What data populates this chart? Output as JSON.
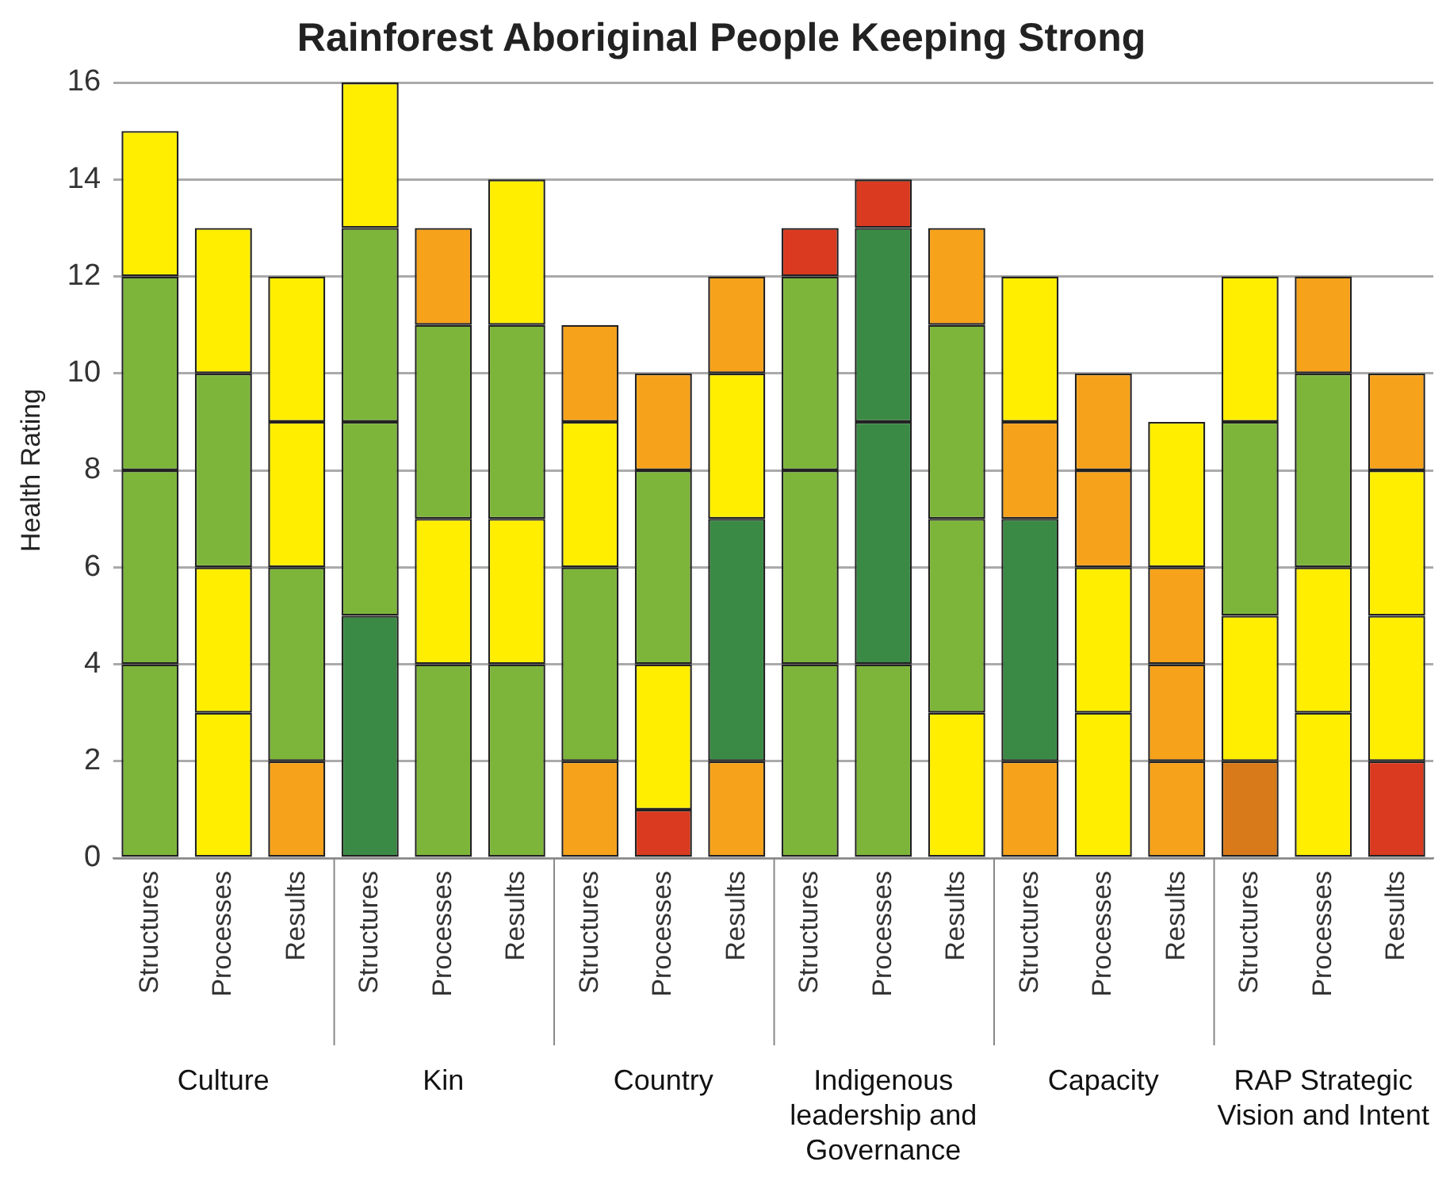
{
  "chart_data": {
    "type": "bar",
    "title": "Rainforest Aboriginal People Keeping Strong",
    "ylabel": "Health Rating",
    "stacked": true,
    "grid": "y",
    "legend": false,
    "categories": [
      "Structures",
      "Processes",
      "Results",
      "Structures",
      "Processes",
      "Results",
      "Structures",
      "Processes",
      "Results",
      "Structures",
      "Processes",
      "Results",
      "Structures",
      "Processes",
      "Results",
      "Structures",
      "Processes",
      "Results"
    ],
    "annotations": [
      "Culture",
      "Kin",
      "Country",
      "Indigenous leadership and Governance",
      "Capacity",
      "RAP Strategic Vision and Intent"
    ],
    "ylim": [
      0,
      16
    ],
    "yticks": [
      0,
      2,
      4,
      6,
      8,
      10,
      12,
      14,
      16
    ],
    "series": [
      {
        "values": [
          4,
          3,
          2,
          5,
          4,
          4,
          2,
          1,
          2,
          4,
          4,
          3,
          2,
          3,
          2,
          2,
          3,
          2
        ],
        "colors": [
          "#7db53a",
          "#ffee00",
          "#f7a21b",
          "#3a8a45",
          "#7db53a",
          "#7db53a",
          "#f7a21b",
          "#d93a20",
          "#f7a21b",
          "#7db53a",
          "#7db53a",
          "#ffee00",
          "#f7a21b",
          "#ffee00",
          "#f7a21b",
          "#d87a1a",
          "#ffee00",
          "#d93a20"
        ]
      },
      {
        "values": [
          4,
          3,
          4,
          4,
          3,
          3,
          4,
          3,
          5,
          4,
          5,
          4,
          5,
          3,
          2,
          3,
          3,
          3
        ],
        "colors": [
          "#7db53a",
          "#ffee00",
          "#7db53a",
          "#7db53a",
          "#ffee00",
          "#ffee00",
          "#7db53a",
          "#ffee00",
          "#3a8a45",
          "#7db53a",
          "#3a8a45",
          "#7db53a",
          "#3a8a45",
          "#ffee00",
          "#f7a21b",
          "#ffee00",
          "#ffee00",
          "#ffee00"
        ]
      },
      {
        "values": [
          4,
          4,
          3,
          4,
          4,
          4,
          3,
          4,
          3,
          4,
          4,
          4,
          2,
          2,
          2,
          4,
          4,
          3
        ],
        "colors": [
          "#7db53a",
          "#7db53a",
          "#ffee00",
          "#7db53a",
          "#7db53a",
          "#7db53a",
          "#ffee00",
          "#7db53a",
          "#ffee00",
          "#7db53a",
          "#3a8a45",
          "#7db53a",
          "#f7a21b",
          "#f7a21b",
          "#f7a21b",
          "#7db53a",
          "#7db53a",
          "#ffee00"
        ]
      },
      {
        "values": [
          3,
          3,
          3,
          3,
          2,
          3,
          2,
          2,
          2,
          1,
          1,
          2,
          3,
          2,
          3,
          3,
          2,
          2
        ],
        "colors": [
          "#ffee00",
          "#ffee00",
          "#ffee00",
          "#ffee00",
          "#f7a21b",
          "#ffee00",
          "#f7a21b",
          "#f7a21b",
          "#f7a21b",
          "#d93a20",
          "#d93a20",
          "#f7a21b",
          "#ffee00",
          "#f7a21b",
          "#ffee00",
          "#ffee00",
          "#f7a21b",
          "#f7a21b"
        ]
      }
    ]
  }
}
